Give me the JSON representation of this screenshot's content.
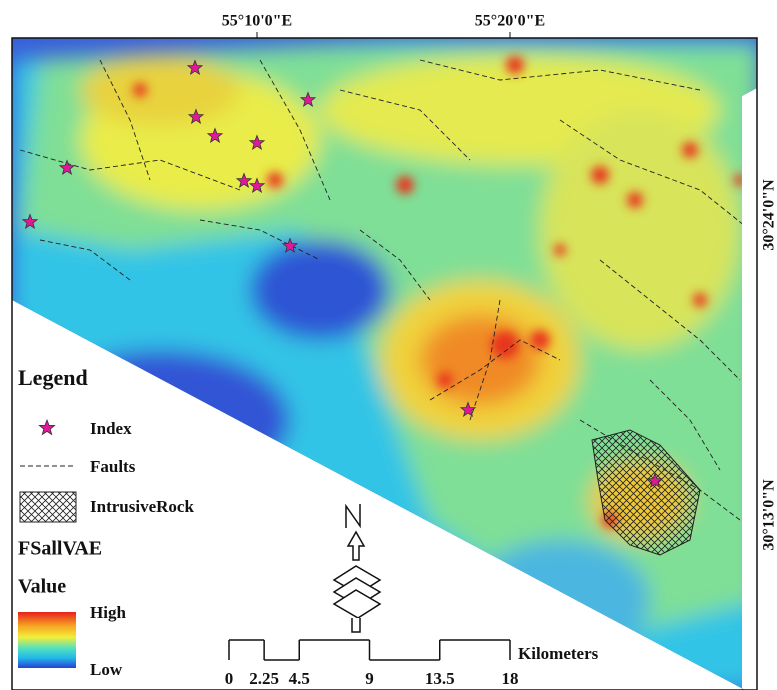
{
  "map": {
    "x_labels": [
      "55°10'0\"E",
      "55°20'0\"E"
    ],
    "y_labels": [
      "30°24'0\"N",
      "30°13'0\"N"
    ]
  },
  "legend": {
    "title": "Legend",
    "items": [
      "Index",
      "Faults",
      "IntrusiveRock"
    ],
    "layer": "FSallVAE",
    "field": "Value",
    "high": "High",
    "low": "Low"
  },
  "scale_bar": {
    "ticks": [
      0,
      2.25,
      4.5,
      9,
      13.5,
      18
    ],
    "unit": "Kilometers"
  }
}
